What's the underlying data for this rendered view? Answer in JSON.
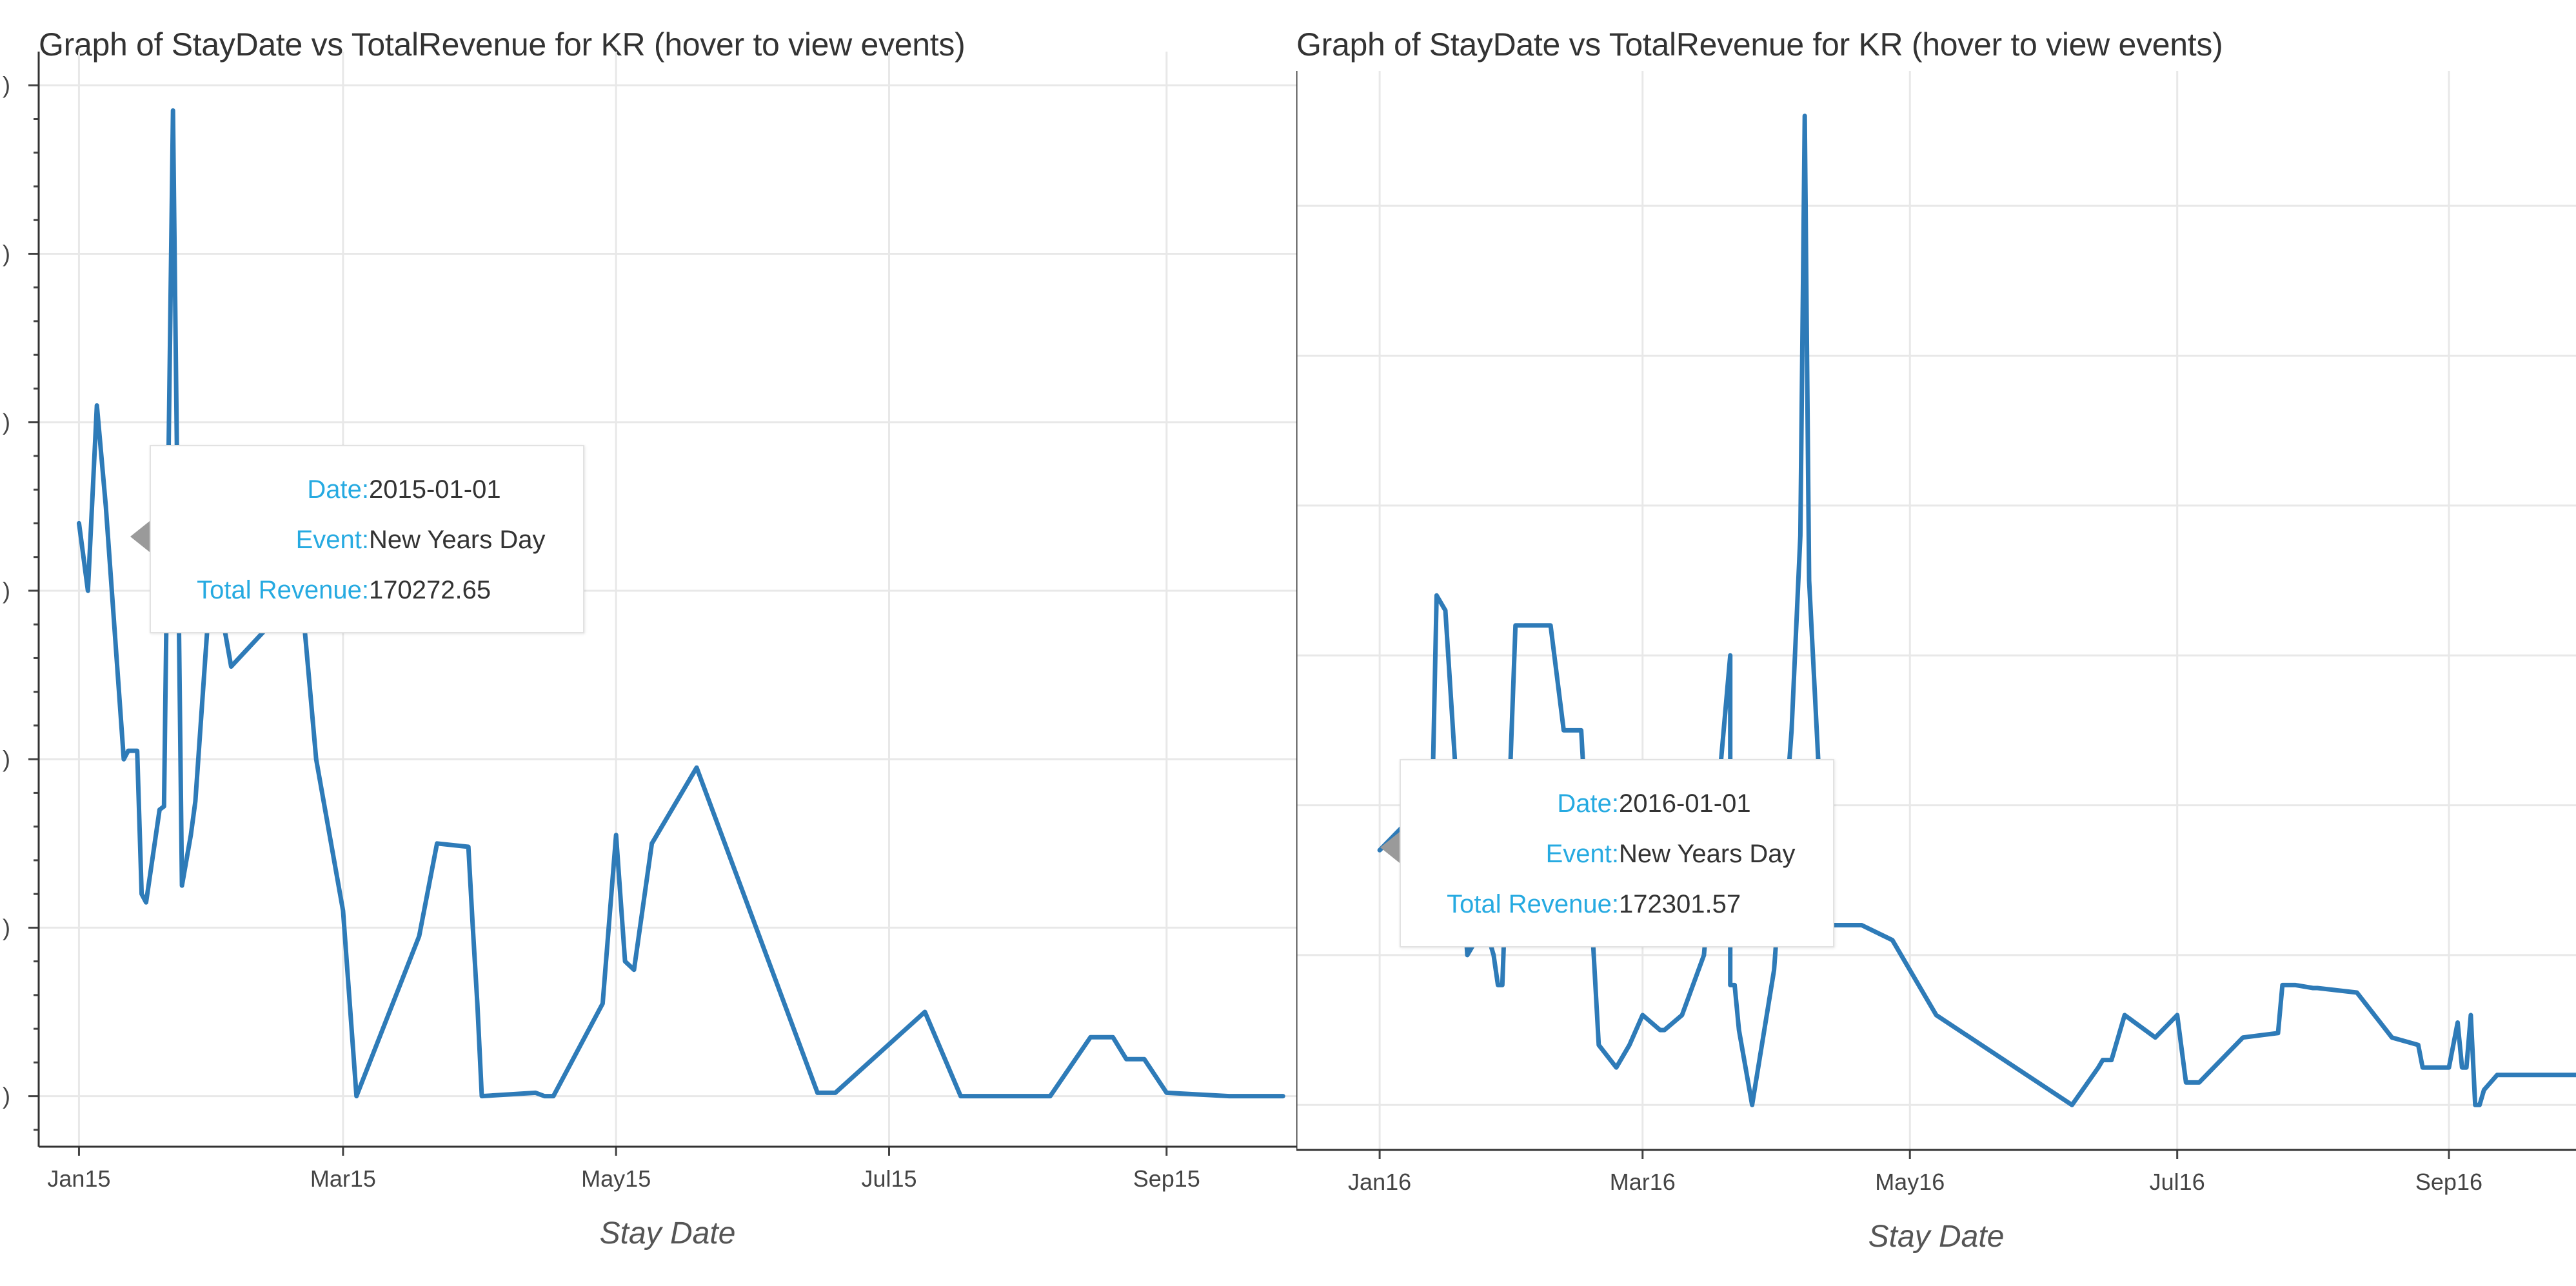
{
  "chart_data": [
    {
      "type": "line",
      "title": "Graph of StayDate vs TotalRevenue for KR (hover to view events)",
      "xlabel": "Stay Date",
      "ylabel": "",
      "x_ticks": [
        "Jan15",
        "Mar15",
        "May15",
        "Jul15",
        "Sep15"
      ],
      "x_tick_dates": [
        "2015-01-01",
        "2015-03-01",
        "2015-05-01",
        "2015-07-01",
        "2015-09-01"
      ],
      "x_range": [
        "2014-12-23",
        "2015-09-30"
      ],
      "y_range": [
        -0.3,
        6.2
      ],
      "grid": true,
      "color": "#2e7bb8",
      "series": [
        {
          "x": [
            "2015-01-01",
            "2015-01-03",
            "2015-01-05",
            "2015-01-07",
            "2015-01-11",
            "2015-01-12",
            "2015-01-14",
            "2015-01-15",
            "2015-01-16",
            "2015-01-19",
            "2015-01-20",
            "2015-01-22",
            "2015-01-24",
            "2015-01-25",
            "2015-01-26",
            "2015-01-27",
            "2015-01-30",
            "2015-02-01",
            "2015-02-04",
            "2015-02-18",
            "2015-02-19",
            "2015-02-23",
            "2015-03-01",
            "2015-03-04",
            "2015-03-18",
            "2015-03-22",
            "2015-03-29",
            "2015-03-30",
            "2015-03-31",
            "2015-04-01",
            "2015-04-13",
            "2015-04-15",
            "2015-04-17",
            "2015-04-28",
            "2015-05-01",
            "2015-05-03",
            "2015-05-05",
            "2015-05-09",
            "2015-05-19",
            "2015-06-15",
            "2015-06-19",
            "2015-07-09",
            "2015-07-17",
            "2015-08-06",
            "2015-08-15",
            "2015-08-20",
            "2015-08-23",
            "2015-08-27",
            "2015-09-01",
            "2015-09-15",
            "2015-09-27"
          ],
          "y": [
            3.4,
            3.0,
            4.1,
            3.5,
            2.0,
            2.05,
            2.05,
            1.2,
            1.15,
            1.7,
            1.72,
            5.85,
            1.25,
            1.4,
            1.55,
            1.75,
            2.9,
            3.0,
            2.55,
            2.95,
            3.2,
            2.0,
            1.1,
            0.0,
            0.95,
            1.5,
            1.48,
            1.0,
            0.55,
            0.0,
            0.02,
            0.0,
            0.0,
            0.55,
            1.55,
            0.8,
            0.75,
            1.5,
            1.95,
            0.02,
            0.02,
            0.5,
            0.0,
            0.0,
            0.35,
            0.35,
            0.22,
            0.22,
            0.02,
            0.0,
            0.0
          ]
        }
      ]
    },
    {
      "type": "line",
      "title": "Graph of StayDate vs TotalRevenue for KR (hover to view events)",
      "xlabel": "Stay Date",
      "ylabel": "",
      "x_ticks": [
        "Jan16",
        "Mar16",
        "May16",
        "Jul16",
        "Sep16"
      ],
      "x_tick_dates": [
        "2016-01-01",
        "2016-03-01",
        "2016-05-01",
        "2016-07-01",
        "2016-09-01"
      ],
      "x_range": [
        "2015-12-13",
        "2016-09-30"
      ],
      "y_range": [
        -0.3,
        6.9
      ],
      "grid": true,
      "color": "#2e7bb8",
      "series": [
        {
          "x": [
            "2016-01-01",
            "2016-01-11",
            "2016-01-13",
            "2016-01-14",
            "2016-01-16",
            "2016-01-21",
            "2016-01-25",
            "2016-01-27",
            "2016-01-28",
            "2016-01-29",
            "2016-02-01",
            "2016-02-09",
            "2016-02-12",
            "2016-02-16",
            "2016-02-20",
            "2016-02-24",
            "2016-02-27",
            "2016-03-01",
            "2016-03-05",
            "2016-03-06",
            "2016-03-10",
            "2016-03-15",
            "2016-03-21",
            "2016-03-21",
            "2016-03-22",
            "2016-03-23",
            "2016-03-26",
            "2016-03-31",
            "2016-04-04",
            "2016-04-06",
            "2016-04-07",
            "2016-04-08",
            "2016-04-12",
            "2016-04-20",
            "2016-04-27",
            "2016-05-07",
            "2016-06-07",
            "2016-06-13",
            "2016-06-14",
            "2016-06-16",
            "2016-06-19",
            "2016-06-26",
            "2016-07-01",
            "2016-07-03",
            "2016-07-06",
            "2016-07-16",
            "2016-07-24",
            "2016-07-25",
            "2016-07-28",
            "2016-08-01",
            "2016-08-02",
            "2016-08-11",
            "2016-08-19",
            "2016-08-25",
            "2016-08-26",
            "2016-09-01",
            "2016-09-03",
            "2016-09-04",
            "2016-09-05",
            "2016-09-06",
            "2016-09-07",
            "2016-09-08",
            "2016-09-09",
            "2016-09-12",
            "2016-09-15",
            "2016-09-30"
          ],
          "y": [
            1.7,
            2.0,
            2.0,
            3.4,
            3.3,
            1.0,
            1.2,
            1.0,
            0.8,
            0.8,
            3.2,
            3.2,
            2.5,
            2.5,
            0.4,
            0.25,
            0.4,
            0.6,
            0.5,
            0.5,
            0.6,
            1.0,
            3.0,
            0.8,
            0.8,
            0.5,
            0.0,
            0.9,
            2.5,
            3.8,
            6.6,
            3.5,
            1.2,
            1.2,
            1.1,
            0.6,
            0.0,
            0.25,
            0.3,
            0.3,
            0.6,
            0.45,
            0.6,
            0.15,
            0.15,
            0.45,
            0.48,
            0.8,
            0.8,
            0.78,
            0.78,
            0.75,
            0.45,
            0.4,
            0.25,
            0.25,
            0.55,
            0.25,
            0.25,
            0.6,
            0.0,
            0.0,
            0.1,
            0.2,
            0.2,
            0.2
          ]
        }
      ]
    }
  ],
  "tooltips": [
    {
      "date_label": "Date:",
      "date_value": "2015-01-01",
      "event_label": "Event:",
      "event_value": "New Years Day",
      "revenue_label": "Total Revenue:",
      "revenue_value": "170272.65"
    },
    {
      "date_label": "Date:",
      "date_value": "2016-01-01",
      "event_label": "Event:",
      "event_value": "New Years Day",
      "revenue_label": "Total Revenue:",
      "revenue_value": "172301.57"
    }
  ]
}
